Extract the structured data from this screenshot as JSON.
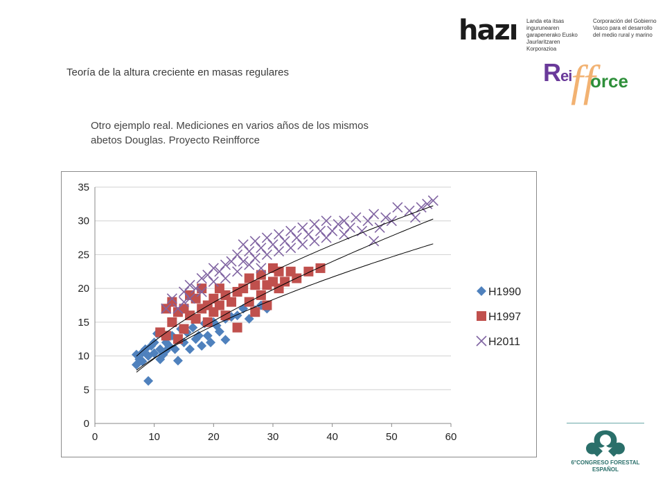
{
  "header": {
    "title": "Teoría de la altura creciente en masas regulares",
    "subtitle_line1": "Otro ejemplo real. Mediciones en varios años de los mismos",
    "subtitle_line2": "abetos Douglas. Proyecto Reinfforce"
  },
  "logos": {
    "hazi": {
      "word": "hazı",
      "text_left": "Landa eta itsas ingurunearen\ngarapenerako Eusko\nJaurlaritzaren Korporazioa",
      "text_right": "Corporación del Gobierno\nVasco para el desarrollo\ndel medio rural y marino"
    },
    "reinfforce": {
      "r": "R",
      "ei": "ei",
      "ff": "ff",
      "orce": "orce"
    },
    "congreso": {
      "line1": "6°CONGRESO FORESTAL",
      "line2": "ESPAÑOL"
    }
  },
  "colors": {
    "H1990": "#4f81bd",
    "H1997": "#c0504d",
    "H2011": "#8064a2",
    "trend": "#000000",
    "grid": "#d0d0d0"
  },
  "chart_data": {
    "type": "scatter",
    "title": "",
    "xlabel": "",
    "ylabel": "",
    "xlim": [
      0,
      60
    ],
    "ylim": [
      0,
      35
    ],
    "x_ticks": [
      "0",
      "10",
      "20",
      "30",
      "40",
      "50",
      "60"
    ],
    "y_ticks": [
      "0",
      "5",
      "10",
      "15",
      "20",
      "25",
      "30",
      "35"
    ],
    "grid": "horizontal",
    "legend_position": "right",
    "series": [
      {
        "name": "H1990",
        "marker": "diamond",
        "points": [
          [
            7,
            8.7
          ],
          [
            7,
            10.2
          ],
          [
            7.5,
            9.5
          ],
          [
            8,
            10.5
          ],
          [
            8,
            9.2
          ],
          [
            8.5,
            11
          ],
          [
            9,
            6.3
          ],
          [
            9,
            10
          ],
          [
            9.5,
            11.5
          ],
          [
            10,
            10.4
          ],
          [
            10,
            12
          ],
          [
            10.5,
            13.3
          ],
          [
            11,
            9.5
          ],
          [
            11,
            11
          ],
          [
            11.5,
            10.2
          ],
          [
            12,
            12
          ],
          [
            12,
            10.8
          ],
          [
            12.5,
            11.5
          ],
          [
            13,
            13
          ],
          [
            13.5,
            11
          ],
          [
            14,
            12.5
          ],
          [
            14,
            9.3
          ],
          [
            14.5,
            14
          ],
          [
            15,
            12
          ],
          [
            15.5,
            13.5
          ],
          [
            16,
            11
          ],
          [
            16.5,
            14.2
          ],
          [
            17,
            12.5
          ],
          [
            17.5,
            13
          ],
          [
            18,
            11.5
          ],
          [
            18.5,
            14.8
          ],
          [
            19,
            13
          ],
          [
            19.5,
            12
          ],
          [
            20,
            15
          ],
          [
            20.5,
            14.5
          ],
          [
            21,
            13.6
          ],
          [
            22,
            15.5
          ],
          [
            22,
            12.4
          ],
          [
            23,
            15.8
          ],
          [
            24,
            16
          ],
          [
            25,
            17
          ],
          [
            26,
            15.5
          ],
          [
            27,
            16.8
          ],
          [
            28,
            17.5
          ],
          [
            29,
            17
          ]
        ]
      },
      {
        "name": "H1997",
        "marker": "square",
        "points": [
          [
            11,
            13.5
          ],
          [
            12,
            17
          ],
          [
            12,
            13
          ],
          [
            13,
            15
          ],
          [
            13,
            18
          ],
          [
            14,
            16.5
          ],
          [
            14,
            12.5
          ],
          [
            15,
            17
          ],
          [
            15,
            14
          ],
          [
            16,
            19
          ],
          [
            16,
            16
          ],
          [
            17,
            15.5
          ],
          [
            17,
            18.5
          ],
          [
            18,
            17
          ],
          [
            18,
            20
          ],
          [
            19,
            17.5
          ],
          [
            19,
            15
          ],
          [
            20,
            18.5
          ],
          [
            20,
            16.5
          ],
          [
            21,
            17.5
          ],
          [
            21,
            20
          ],
          [
            22,
            19
          ],
          [
            22,
            16
          ],
          [
            23,
            18
          ],
          [
            24,
            19.5
          ],
          [
            24,
            14.2
          ],
          [
            25,
            20
          ],
          [
            26,
            21.5
          ],
          [
            26,
            18
          ],
          [
            27,
            16.5
          ],
          [
            27,
            20.5
          ],
          [
            28,
            22
          ],
          [
            28,
            19
          ],
          [
            29,
            20.5
          ],
          [
            29,
            17.5
          ],
          [
            30,
            21
          ],
          [
            30,
            23
          ],
          [
            31,
            22.5
          ],
          [
            31,
            20
          ],
          [
            32,
            21
          ],
          [
            33,
            22.5
          ],
          [
            34,
            21.5
          ],
          [
            36,
            22.5
          ],
          [
            38,
            23
          ]
        ]
      },
      {
        "name": "H2011",
        "marker": "x",
        "points": [
          [
            12,
            17
          ],
          [
            13,
            18.5
          ],
          [
            14,
            17
          ],
          [
            15,
            19.5
          ],
          [
            15,
            18
          ],
          [
            16,
            20.5
          ],
          [
            16,
            18.5
          ],
          [
            17,
            20
          ],
          [
            18,
            21.5
          ],
          [
            18,
            19.5
          ],
          [
            19,
            22
          ],
          [
            20,
            21
          ],
          [
            20,
            23
          ],
          [
            21,
            22.5
          ],
          [
            22,
            23.5
          ],
          [
            22,
            21.5
          ],
          [
            23,
            24
          ],
          [
            24,
            25
          ],
          [
            24,
            22.5
          ],
          [
            25,
            26.5
          ],
          [
            25,
            24
          ],
          [
            26,
            25.5
          ],
          [
            26,
            23.5
          ],
          [
            27,
            27
          ],
          [
            27,
            24.5
          ],
          [
            28,
            26
          ],
          [
            28,
            23
          ],
          [
            29,
            27.5
          ],
          [
            29,
            25
          ],
          [
            30,
            26.5
          ],
          [
            31,
            28
          ],
          [
            31,
            25.5
          ],
          [
            32,
            27
          ],
          [
            33,
            28.5
          ],
          [
            33,
            26
          ],
          [
            34,
            27.5
          ],
          [
            35,
            29
          ],
          [
            35,
            26.5
          ],
          [
            36,
            28
          ],
          [
            37,
            29.5
          ],
          [
            37,
            27
          ],
          [
            38,
            28.5
          ],
          [
            39,
            30
          ],
          [
            39,
            27.5
          ],
          [
            40,
            28.5
          ],
          [
            41,
            29.5
          ],
          [
            42,
            30
          ],
          [
            42,
            28
          ],
          [
            43,
            29
          ],
          [
            44,
            30.5
          ],
          [
            45,
            28.5
          ],
          [
            46,
            30
          ],
          [
            47,
            31
          ],
          [
            47,
            27
          ],
          [
            48,
            29
          ],
          [
            49,
            30.5
          ],
          [
            50,
            30
          ],
          [
            51,
            32
          ],
          [
            53,
            31.5
          ],
          [
            54,
            30.5
          ],
          [
            55,
            32
          ],
          [
            56,
            32.5
          ],
          [
            57,
            33
          ]
        ]
      }
    ],
    "trend_lines": [
      {
        "x_start": 7,
        "x_end": 57,
        "a": 2.1,
        "b": 0.66
      },
      {
        "x_start": 7,
        "x_end": 57,
        "a": 2.55,
        "b": 0.58
      },
      {
        "x_start": 7,
        "x_end": 57,
        "a": 3.35,
        "b": 0.56
      }
    ]
  }
}
